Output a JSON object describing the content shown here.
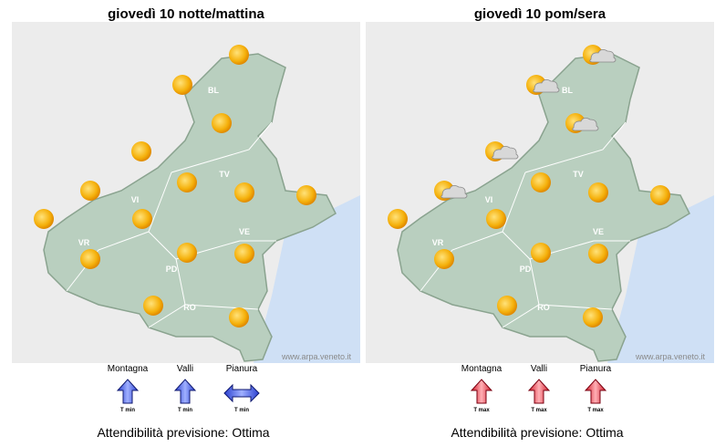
{
  "panels": [
    {
      "title": "giovedì 10 notte/mattina",
      "provinces": [
        "BL",
        "TV",
        "VI",
        "VR",
        "PD",
        "VE",
        "RO"
      ],
      "watermark": "www.arpa.veneto.it",
      "legend": [
        "Montagna",
        "Valli",
        "Pianura"
      ],
      "arrow_labels": [
        "T min",
        "T min",
        "T min"
      ],
      "reliability": "Attendibilità previsione: Ottima"
    },
    {
      "title": "giovedì 10 pom/sera",
      "provinces": [
        "BL",
        "TV",
        "VI",
        "VR",
        "PD",
        "VE",
        "RO"
      ],
      "watermark": "www.arpa.veneto.it",
      "legend": [
        "Montagna",
        "Valli",
        "Pianura"
      ],
      "arrow_labels": [
        "T max",
        "T max",
        "T max"
      ],
      "reliability": "Attendibilità previsione: Ottima"
    }
  ]
}
